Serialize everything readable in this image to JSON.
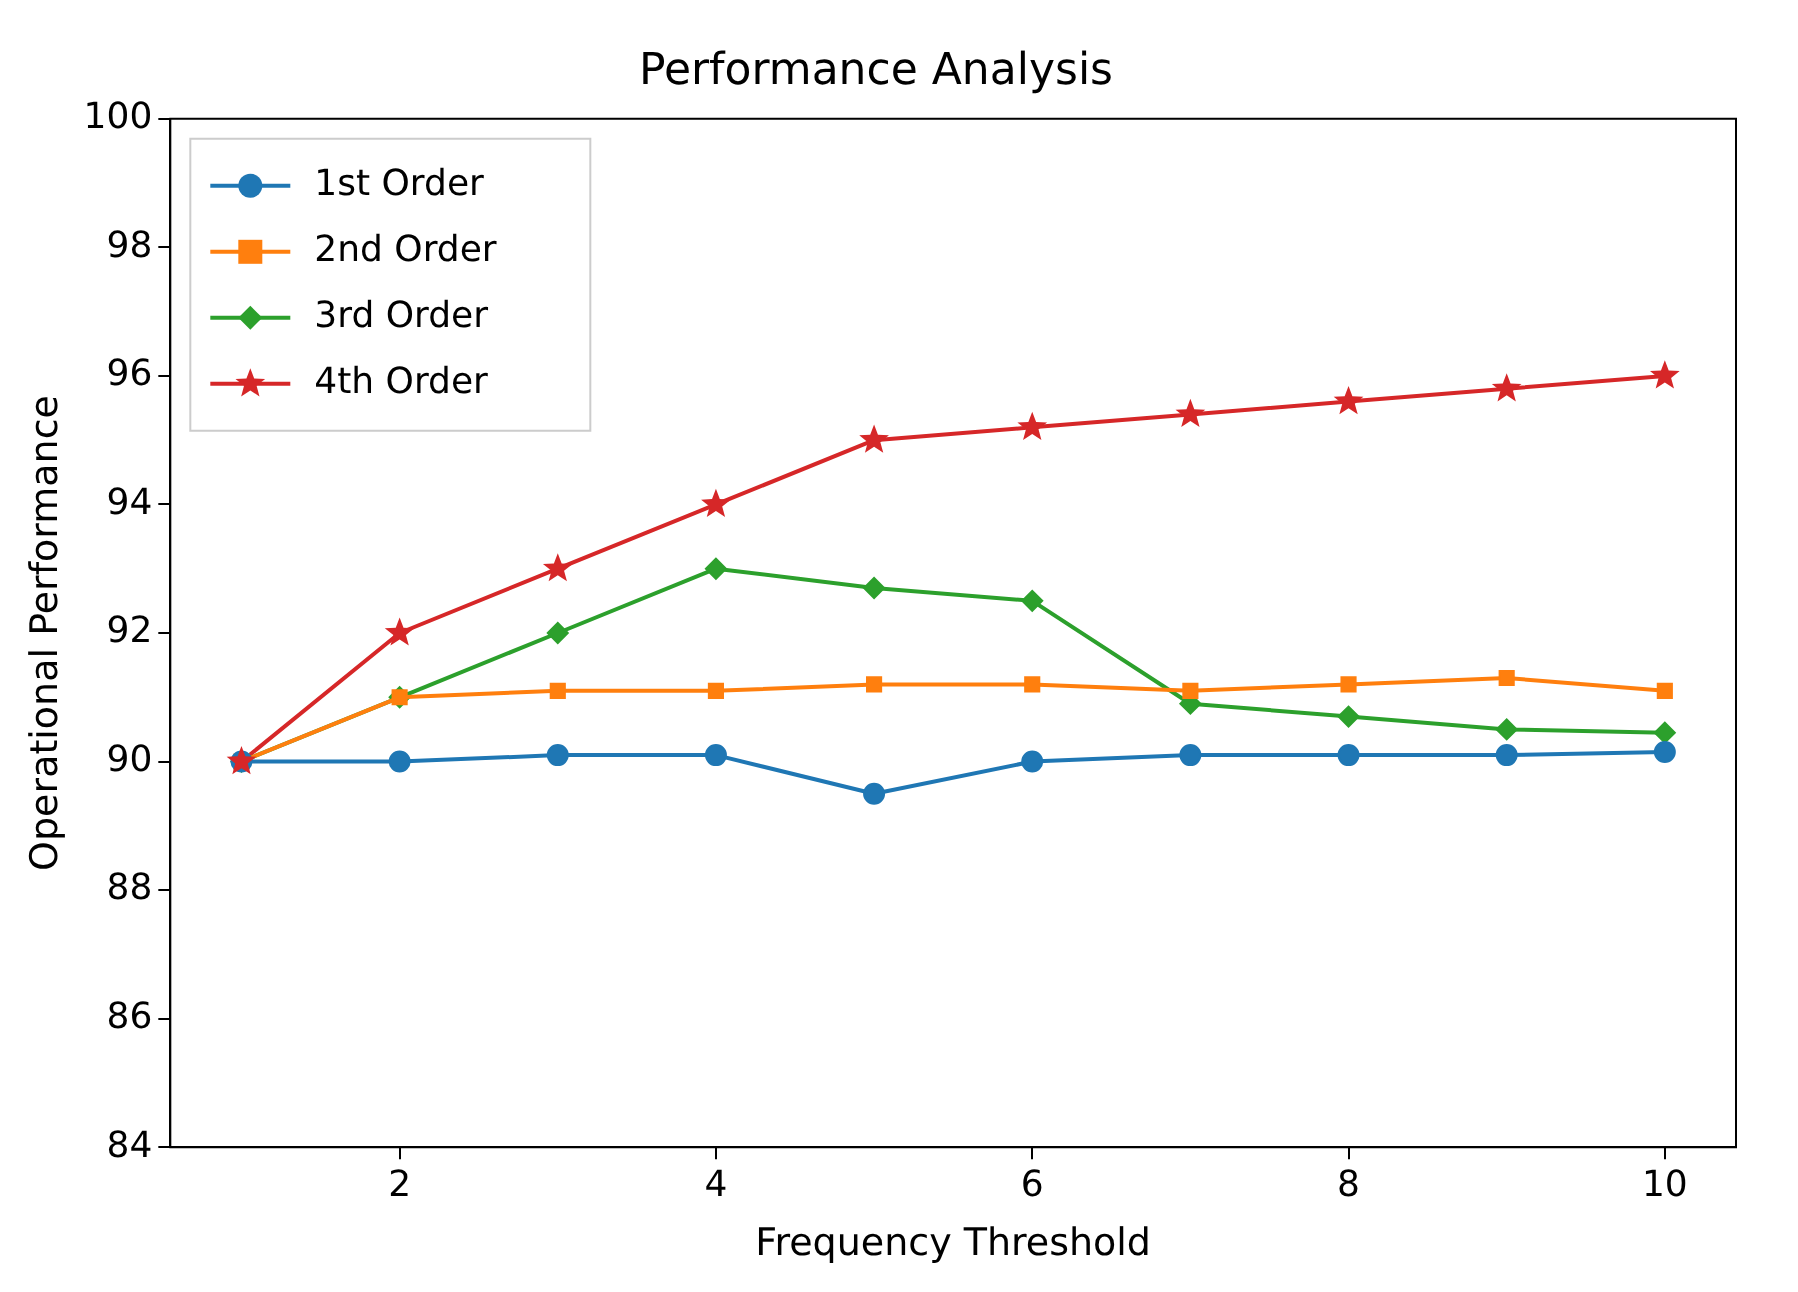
{
  "chart_data": {
    "type": "line",
    "title": "Performance Analysis",
    "xlabel": "Frequency Threshold",
    "ylabel": "Operational Performance",
    "x": [
      1,
      2,
      3,
      4,
      5,
      6,
      7,
      8,
      9,
      10
    ],
    "series": [
      {
        "name": "1st Order",
        "color": "#1f77b4",
        "marker": "circle",
        "values": [
          90,
          90,
          90.1,
          90.1,
          89.5,
          90,
          90.1,
          90.1,
          90.1,
          90.15
        ]
      },
      {
        "name": "2nd Order",
        "color": "#ff7f0e",
        "marker": "square",
        "values": [
          90,
          91,
          91.1,
          91.1,
          91.2,
          91.2,
          91.1,
          91.2,
          91.3,
          91.1
        ]
      },
      {
        "name": "3rd Order",
        "color": "#2ca02c",
        "marker": "diamond",
        "values": [
          90,
          91,
          92,
          93,
          92.7,
          92.5,
          90.9,
          90.7,
          90.5,
          90.45
        ]
      },
      {
        "name": "4th Order",
        "color": "#d62728",
        "marker": "star",
        "values": [
          90,
          92,
          93,
          94,
          95,
          95.2,
          95.4,
          95.6,
          95.8,
          96
        ]
      }
    ],
    "xlim": [
      0.55,
      10.45
    ],
    "xticks": [
      2,
      4,
      6,
      8,
      10
    ],
    "ylim": [
      84,
      100
    ],
    "yticks": [
      84,
      86,
      88,
      90,
      92,
      94,
      96,
      98,
      100
    ],
    "grid": false,
    "legend": "top left",
    "line_style": "solid"
  }
}
